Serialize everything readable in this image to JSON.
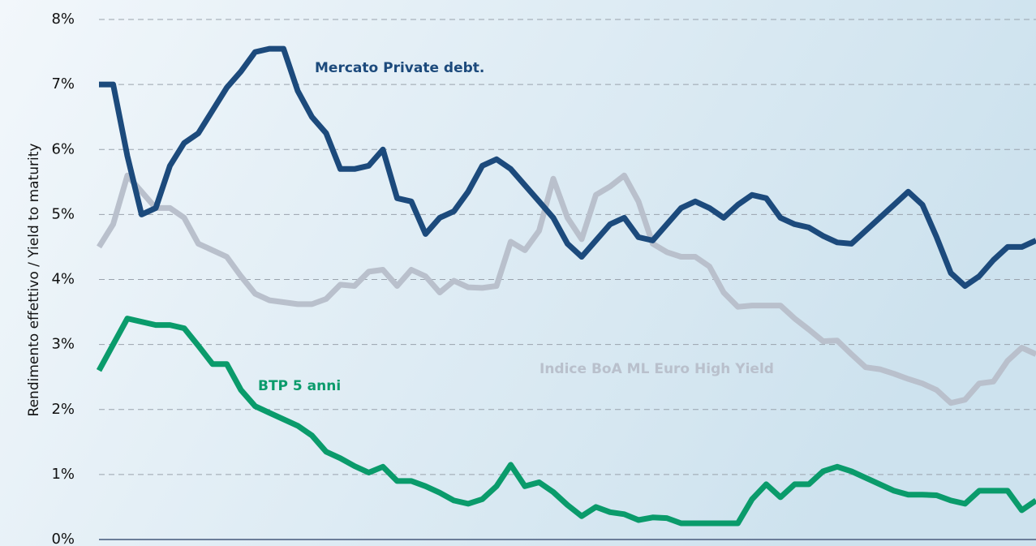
{
  "chart_data": {
    "type": "line",
    "y_label": "Rendimento effettivo / Yield to maturity",
    "categories": [
      null,
      null,
      null,
      null,
      null,
      null,
      null,
      null,
      null,
      null,
      null,
      null,
      null,
      null,
      null,
      null,
      null,
      null,
      null,
      null,
      null,
      null,
      null,
      null,
      null,
      null,
      null,
      null,
      null,
      null,
      null,
      null,
      null,
      null,
      null,
      null,
      null,
      null,
      null,
      null,
      null,
      null,
      null,
      null,
      null,
      null,
      null,
      null,
      null,
      null,
      null,
      null,
      null,
      null,
      null,
      null,
      null,
      null,
      null,
      null,
      null,
      null,
      null,
      null,
      null,
      null,
      null
    ],
    "ylim": [
      0,
      8
    ],
    "yticks": [
      {
        "value": 0,
        "label": "0%"
      },
      {
        "value": 1,
        "label": "1%"
      },
      {
        "value": 2,
        "label": "2%"
      },
      {
        "value": 3,
        "label": "3%"
      },
      {
        "value": 4,
        "label": "4%"
      },
      {
        "value": 5,
        "label": "5%"
      },
      {
        "value": 6,
        "label": "6%"
      },
      {
        "value": 7,
        "label": "7%"
      },
      {
        "value": 8,
        "label": "8%"
      }
    ],
    "grid": true,
    "series": [
      {
        "name": "Indice BoA ML Euro High Yield",
        "color": "#b9c0cc",
        "values": [
          4.5,
          4.85,
          5.6,
          5.35,
          5.1,
          5.1,
          4.95,
          4.55,
          4.45,
          4.35,
          4.05,
          3.78,
          3.68,
          3.65,
          3.62,
          3.62,
          3.7,
          3.92,
          3.9,
          4.12,
          4.15,
          3.9,
          4.15,
          4.05,
          3.8,
          3.98,
          3.88,
          3.87,
          3.9,
          4.58,
          4.45,
          4.75,
          5.55,
          4.95,
          4.62,
          5.3,
          5.43,
          5.6,
          5.2,
          4.55,
          4.42,
          4.35,
          4.35,
          4.2,
          3.8,
          3.58,
          3.6,
          3.6,
          3.6,
          3.4,
          3.23,
          3.05,
          3.06,
          2.85,
          2.65,
          2.62,
          2.55,
          2.47,
          2.4,
          2.3,
          2.1,
          2.15,
          2.4,
          2.43,
          2.75,
          2.95,
          2.85
        ]
      },
      {
        "name": "Mercato Private debt.",
        "color": "#1c4a7c",
        "values": [
          7.0,
          7.0,
          5.9,
          5.0,
          5.1,
          5.75,
          6.1,
          6.25,
          6.6,
          6.95,
          7.2,
          7.5,
          7.55,
          7.55,
          6.9,
          6.5,
          6.25,
          5.7,
          5.7,
          5.75,
          6.0,
          5.25,
          5.2,
          4.7,
          4.95,
          5.05,
          5.35,
          5.75,
          5.85,
          5.7,
          5.45,
          5.2,
          4.95,
          4.55,
          4.35,
          4.6,
          4.85,
          4.95,
          4.65,
          4.6,
          4.85,
          5.1,
          5.2,
          5.1,
          4.95,
          5.15,
          5.3,
          5.25,
          4.95,
          4.85,
          4.8,
          4.67,
          4.57,
          4.55,
          4.75,
          4.95,
          5.15,
          5.35,
          5.15,
          4.65,
          4.1,
          3.9,
          4.05,
          4.3,
          4.5,
          4.5,
          4.6
        ]
      },
      {
        "name": "BTP 5 anni",
        "color": "#0a9b6b",
        "values": [
          2.6,
          3.0,
          3.4,
          3.35,
          3.3,
          3.3,
          3.25,
          2.98,
          2.7,
          2.7,
          2.3,
          2.05,
          1.95,
          1.85,
          1.75,
          1.6,
          1.35,
          1.25,
          1.13,
          1.03,
          1.12,
          0.9,
          0.9,
          0.82,
          0.72,
          0.6,
          0.55,
          0.62,
          0.82,
          1.15,
          0.82,
          0.88,
          0.73,
          0.53,
          0.36,
          0.5,
          0.42,
          0.39,
          0.3,
          0.34,
          0.33,
          0.25,
          0.25,
          0.25,
          0.25,
          0.25,
          0.62,
          0.85,
          0.65,
          0.85,
          0.85,
          1.05,
          1.12,
          1.05,
          0.95,
          0.85,
          0.75,
          0.69,
          0.69,
          0.68,
          0.6,
          0.55,
          0.75,
          0.75,
          0.75,
          0.45,
          0.6
        ]
      }
    ]
  }
}
